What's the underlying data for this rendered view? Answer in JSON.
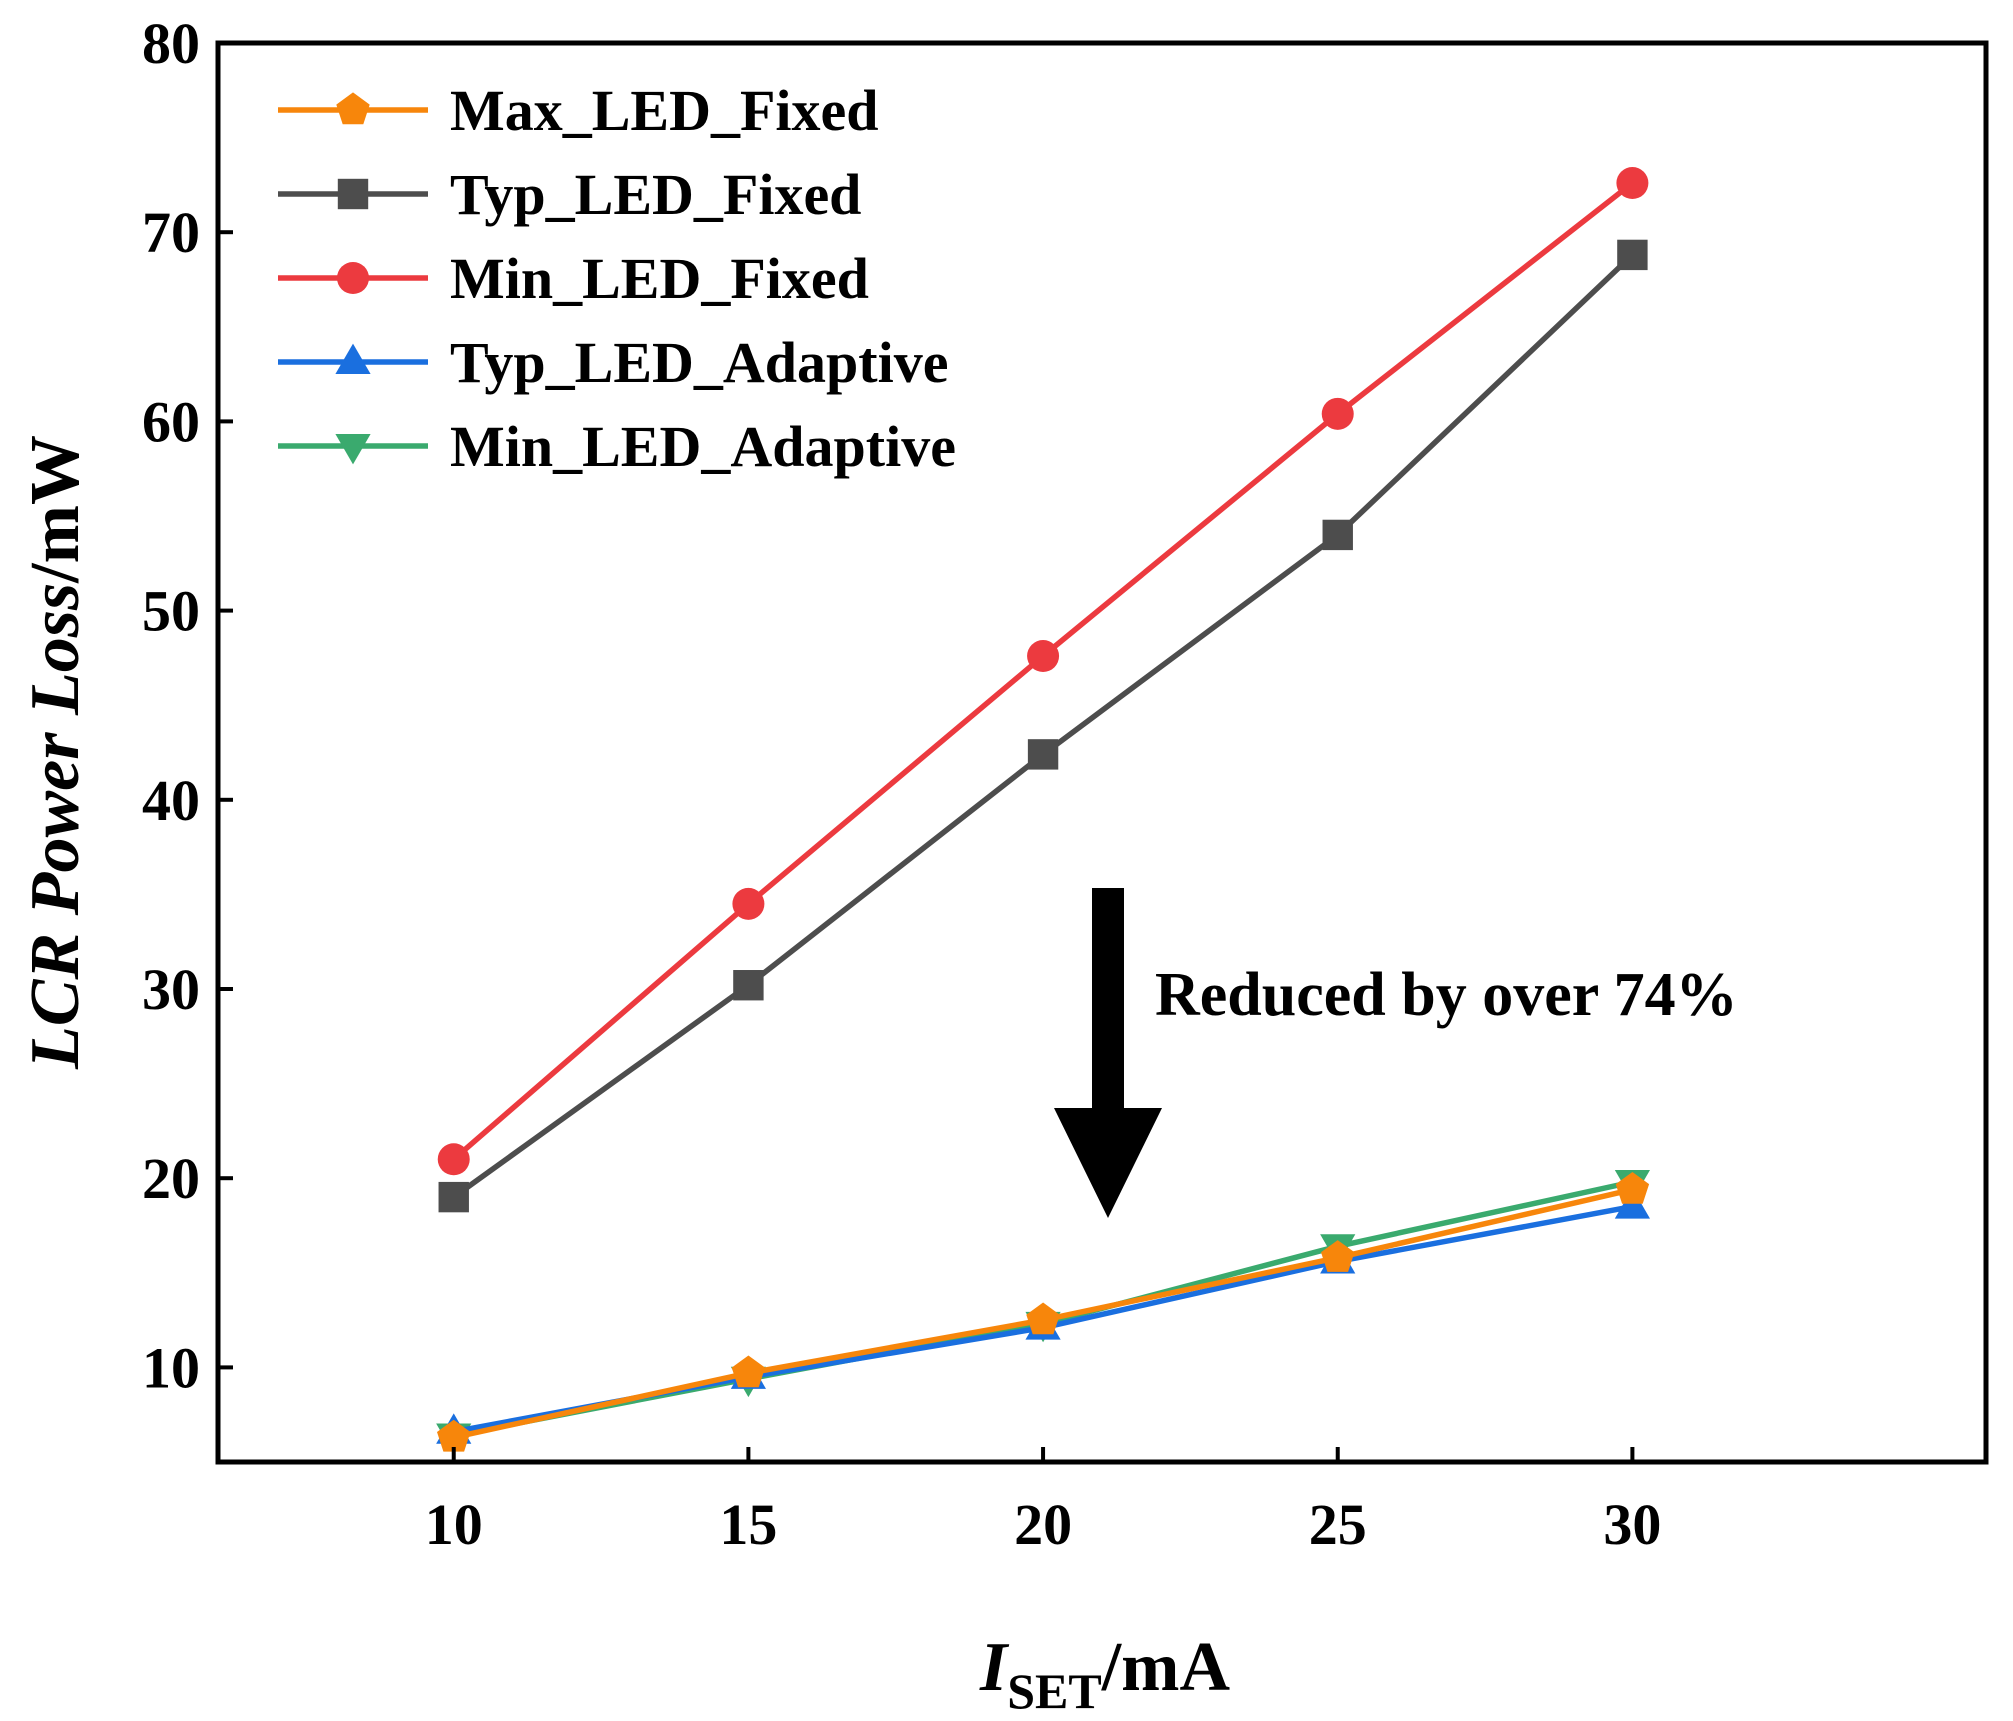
{
  "chart_data": {
    "type": "line",
    "title": "",
    "xlabel_main": "I",
    "xlabel_sub": "SET",
    "xlabel_unit": "/mA",
    "ylabel_italic": "LCR Power Loss",
    "ylabel_unit": "/mW",
    "xlim": [
      6,
      36
    ],
    "ylim": [
      5,
      80
    ],
    "x": [
      10,
      15,
      20,
      25,
      30
    ],
    "xticks": [
      "10",
      "15",
      "20",
      "25",
      "30"
    ],
    "yticks": [
      "10",
      "20",
      "30",
      "40",
      "50",
      "60",
      "70",
      "80"
    ],
    "series": [
      {
        "name": "Max_LED_Fixed",
        "color": "#F7860B",
        "marker": "pentagon",
        "values": [
          6.3,
          9.7,
          12.5,
          15.8,
          19.4
        ]
      },
      {
        "name": "Typ_LED_Fixed",
        "color": "#4D4D4D",
        "marker": "square",
        "values": [
          19.0,
          30.2,
          42.4,
          54.0,
          68.8
        ]
      },
      {
        "name": "Min_LED_Fixed",
        "color": "#EC3A3F",
        "marker": "circle",
        "values": [
          21.0,
          34.5,
          47.6,
          60.4,
          72.6
        ]
      },
      {
        "name": "Typ_LED_Adaptive",
        "color": "#1A6FDF",
        "marker": "triangle-up",
        "values": [
          6.6,
          9.5,
          12.1,
          15.6,
          18.5
        ]
      },
      {
        "name": "Min_LED_Adaptive",
        "color": "#3AAA6E",
        "marker": "triangle-down",
        "values": [
          6.4,
          9.4,
          12.3,
          16.4,
          19.8
        ]
      }
    ],
    "annotation": "Reduced by over 74%",
    "legend_position": "top-left",
    "grid": false
  }
}
